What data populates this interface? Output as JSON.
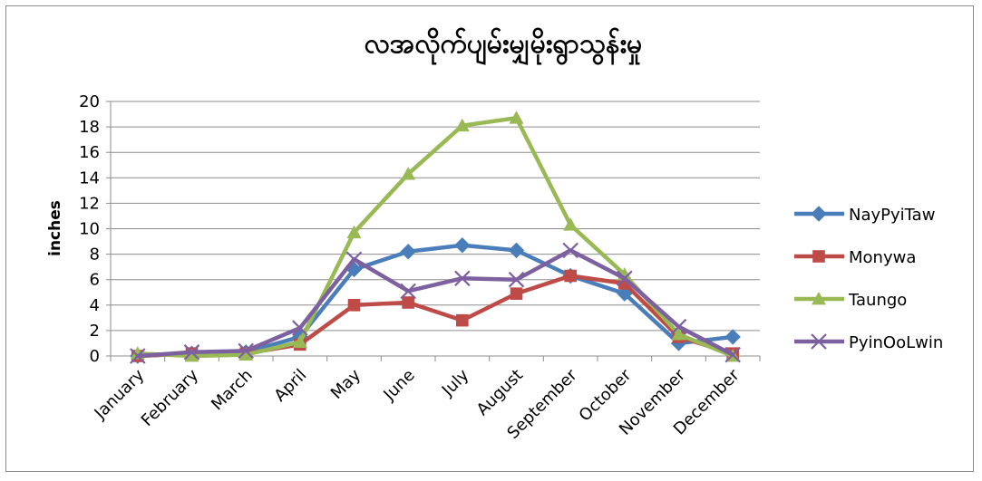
{
  "chart_data": {
    "type": "line",
    "title": "လအလိုက်ပျမ်းမျှမိုးရွာသွန်းမှု",
    "xlabel": "",
    "ylabel": "inches",
    "ylim": [
      0,
      20
    ],
    "yticks": [
      0,
      2,
      4,
      6,
      8,
      10,
      12,
      14,
      16,
      18,
      20
    ],
    "grid": true,
    "legend_position": "right",
    "categories": [
      "January",
      "February",
      "March",
      "April",
      "May",
      "June",
      "July",
      "August",
      "September",
      "October",
      "November",
      "December"
    ],
    "series": [
      {
        "name": "NayPyiTaw",
        "color": "#4a7ebb",
        "marker": "diamond",
        "values": [
          0.0,
          0.2,
          0.3,
          1.5,
          6.8,
          8.2,
          8.7,
          8.3,
          6.3,
          4.9,
          1.0,
          1.5
        ]
      },
      {
        "name": "Monywa",
        "color": "#be4b48",
        "marker": "square",
        "values": [
          0.0,
          0.2,
          0.2,
          0.9,
          4.0,
          4.2,
          2.8,
          4.9,
          6.3,
          5.7,
          1.5,
          0.2
        ]
      },
      {
        "name": "Taungo",
        "color": "#98b954",
        "marker": "triangle",
        "values": [
          0.2,
          0.0,
          0.1,
          1.1,
          9.7,
          14.3,
          18.1,
          18.7,
          10.3,
          6.4,
          1.7,
          0.0
        ]
      },
      {
        "name": "PyinOoLwin",
        "color": "#7d60a0",
        "marker": "x",
        "values": [
          0.0,
          0.3,
          0.4,
          2.2,
          7.6,
          5.1,
          6.1,
          6.0,
          8.3,
          6.1,
          2.3,
          0.1
        ]
      }
    ]
  }
}
